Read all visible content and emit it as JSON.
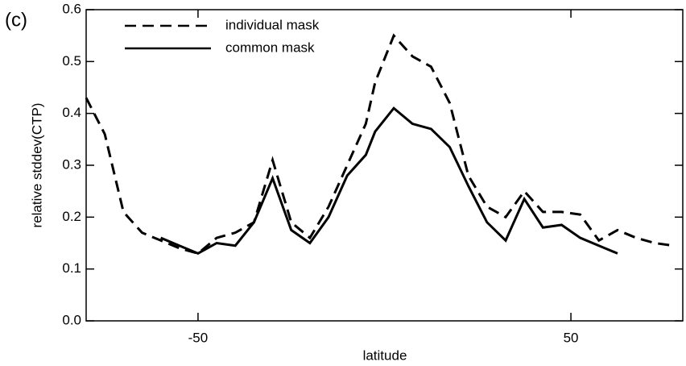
{
  "chart_data": {
    "type": "line",
    "panel_label": "(c)",
    "xlabel": "latitude",
    "ylabel": "relative stddev(CTP)",
    "x": [
      -80,
      -75,
      -70,
      -65,
      -60,
      -55,
      -50,
      -45,
      -40,
      -35,
      -30,
      -25,
      -20,
      -15,
      -10,
      -5,
      -2.5,
      2.5,
      7.5,
      12.5,
      17.5,
      22.5,
      27.5,
      32.5,
      37.5,
      42.5,
      47.5,
      52.5,
      57.5,
      62.5,
      67.5,
      72.5,
      77.5
    ],
    "series": [
      {
        "name": "individual mask",
        "color": "#000000",
        "dash": true,
        "values": [
          0.43,
          0.36,
          0.21,
          0.17,
          0.155,
          0.14,
          0.13,
          0.16,
          0.17,
          0.19,
          0.31,
          0.19,
          0.16,
          0.22,
          0.3,
          0.38,
          0.46,
          0.55,
          0.51,
          0.49,
          0.42,
          0.28,
          0.22,
          0.2,
          0.25,
          0.21,
          0.21,
          0.205,
          0.155,
          0.175,
          0.16,
          0.15,
          0.145
        ]
      },
      {
        "name": "common mask",
        "color": "#000000",
        "dash": false,
        "values": [
          null,
          null,
          null,
          null,
          0.16,
          0.145,
          0.13,
          0.15,
          0.145,
          0.19,
          0.275,
          0.175,
          0.15,
          0.2,
          0.28,
          0.32,
          0.365,
          0.41,
          0.38,
          0.37,
          0.335,
          0.26,
          0.19,
          0.155,
          0.235,
          0.18,
          0.185,
          0.16,
          0.145,
          0.13,
          null,
          null,
          null
        ]
      }
    ],
    "xlim": [
      -80,
      80
    ],
    "xticks": [
      -50,
      50
    ],
    "ylim": [
      0,
      0.6
    ],
    "yticks": [
      {
        "value": 0,
        "label": "0.0"
      },
      0.1,
      0.2,
      0.3,
      0.4,
      0.5,
      0.6
    ],
    "grid": false,
    "legend": "upper left"
  }
}
